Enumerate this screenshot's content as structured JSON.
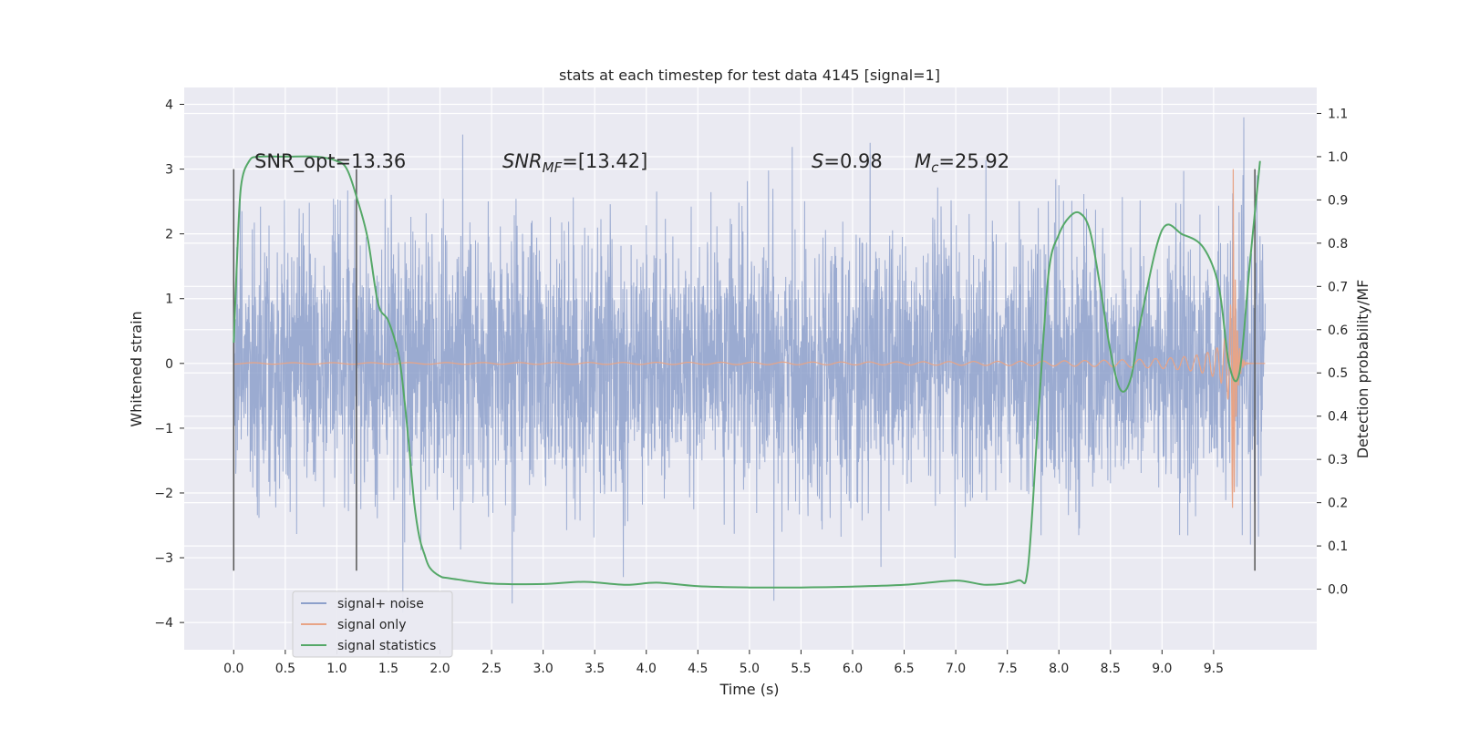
{
  "chart_data": {
    "type": "line",
    "title": "stats at each timestep for test data 4145 [signal=1]",
    "xlabel": "Time (s)",
    "ylabel": "Whitened strain",
    "y2label": "Detection probability/MF",
    "xlim": [
      -0.48,
      10.5
    ],
    "ylim": [
      -4.42,
      4.26
    ],
    "y2lim": [
      -0.14,
      1.16
    ],
    "xticks": [
      0.0,
      0.5,
      1.0,
      1.5,
      2.0,
      2.5,
      3.0,
      3.5,
      4.0,
      4.5,
      5.0,
      5.5,
      6.0,
      6.5,
      7.0,
      7.5,
      8.0,
      8.5,
      9.0,
      9.5
    ],
    "xtick_labels": [
      "0.0",
      "0.5",
      "1.0",
      "1.5",
      "2.0",
      "2.5",
      "3.0",
      "3.5",
      "4.0",
      "4.5",
      "5.0",
      "5.5",
      "6.0",
      "6.5",
      "7.0",
      "7.5",
      "8.0",
      "8.5",
      "9.0",
      "9.5"
    ],
    "yticks": [
      -4,
      -3,
      -2,
      -1,
      0,
      1,
      2,
      3,
      4
    ],
    "ytick_labels": [
      "−4",
      "−3",
      "−2",
      "−1",
      "0",
      "1",
      "2",
      "3",
      "4"
    ],
    "y2ticks": [
      0.0,
      0.1,
      0.2,
      0.3,
      0.4,
      0.5,
      0.6,
      0.7,
      0.8,
      0.9,
      1.0,
      1.1
    ],
    "y2tick_labels": [
      "0.0",
      "0.1",
      "0.2",
      "0.3",
      "0.4",
      "0.5",
      "0.6",
      "0.7",
      "0.8",
      "0.9",
      "1.0",
      "1.1"
    ],
    "grid": true,
    "legend_position": "lower-left",
    "annotations": {
      "snr_opt": "SNR_opt=13.36",
      "snr_mf_main": "SNR",
      "snr_mf_sub": "MF",
      "snr_mf_value": "=[13.42]",
      "s_main": "S",
      "s_value": "=0.98",
      "mc_main": "M",
      "mc_sub": "c",
      "mc_value": "=25.92"
    },
    "vertical_markers": [
      0.0,
      1.19,
      9.9
    ],
    "series": [
      {
        "name": "signal+ noise",
        "color": "#8da0cb",
        "kind": "noise",
        "t_start": 0.0,
        "t_end": 10.0,
        "sigma": 1.0
      },
      {
        "name": "signal only",
        "color": "#e8a486",
        "kind": "chirp",
        "t_coalescence": 9.69,
        "peak_amplitude": 3.0
      },
      {
        "name": "signal statistics",
        "color": "#55a868",
        "axis": "right",
        "x": [
          0.0,
          0.03,
          0.07,
          0.15,
          0.25,
          0.5,
          0.8,
          1.0,
          1.1,
          1.2,
          1.3,
          1.4,
          1.5,
          1.6,
          1.65,
          1.7,
          1.75,
          1.8,
          1.85,
          1.9,
          2.0,
          2.1,
          2.5,
          3.0,
          3.4,
          3.8,
          4.1,
          4.5,
          5.0,
          5.5,
          6.0,
          6.5,
          7.0,
          7.3,
          7.6,
          7.7,
          7.8,
          7.9,
          8.0,
          8.1,
          8.2,
          8.3,
          8.4,
          8.5,
          8.6,
          8.7,
          8.8,
          9.0,
          9.2,
          9.4,
          9.55,
          9.65,
          9.75,
          9.85,
          9.95
        ],
        "values": [
          0.57,
          0.75,
          0.93,
          0.99,
          1.0,
          1.0,
          1.0,
          0.99,
          0.97,
          0.9,
          0.81,
          0.66,
          0.62,
          0.54,
          0.45,
          0.33,
          0.2,
          0.12,
          0.08,
          0.05,
          0.03,
          0.025,
          0.013,
          0.012,
          0.017,
          0.01,
          0.015,
          0.007,
          0.004,
          0.004,
          0.006,
          0.01,
          0.02,
          0.01,
          0.02,
          0.05,
          0.4,
          0.73,
          0.82,
          0.86,
          0.87,
          0.83,
          0.7,
          0.55,
          0.46,
          0.49,
          0.63,
          0.83,
          0.82,
          0.79,
          0.7,
          0.52,
          0.5,
          0.75,
          0.99
        ]
      }
    ]
  }
}
